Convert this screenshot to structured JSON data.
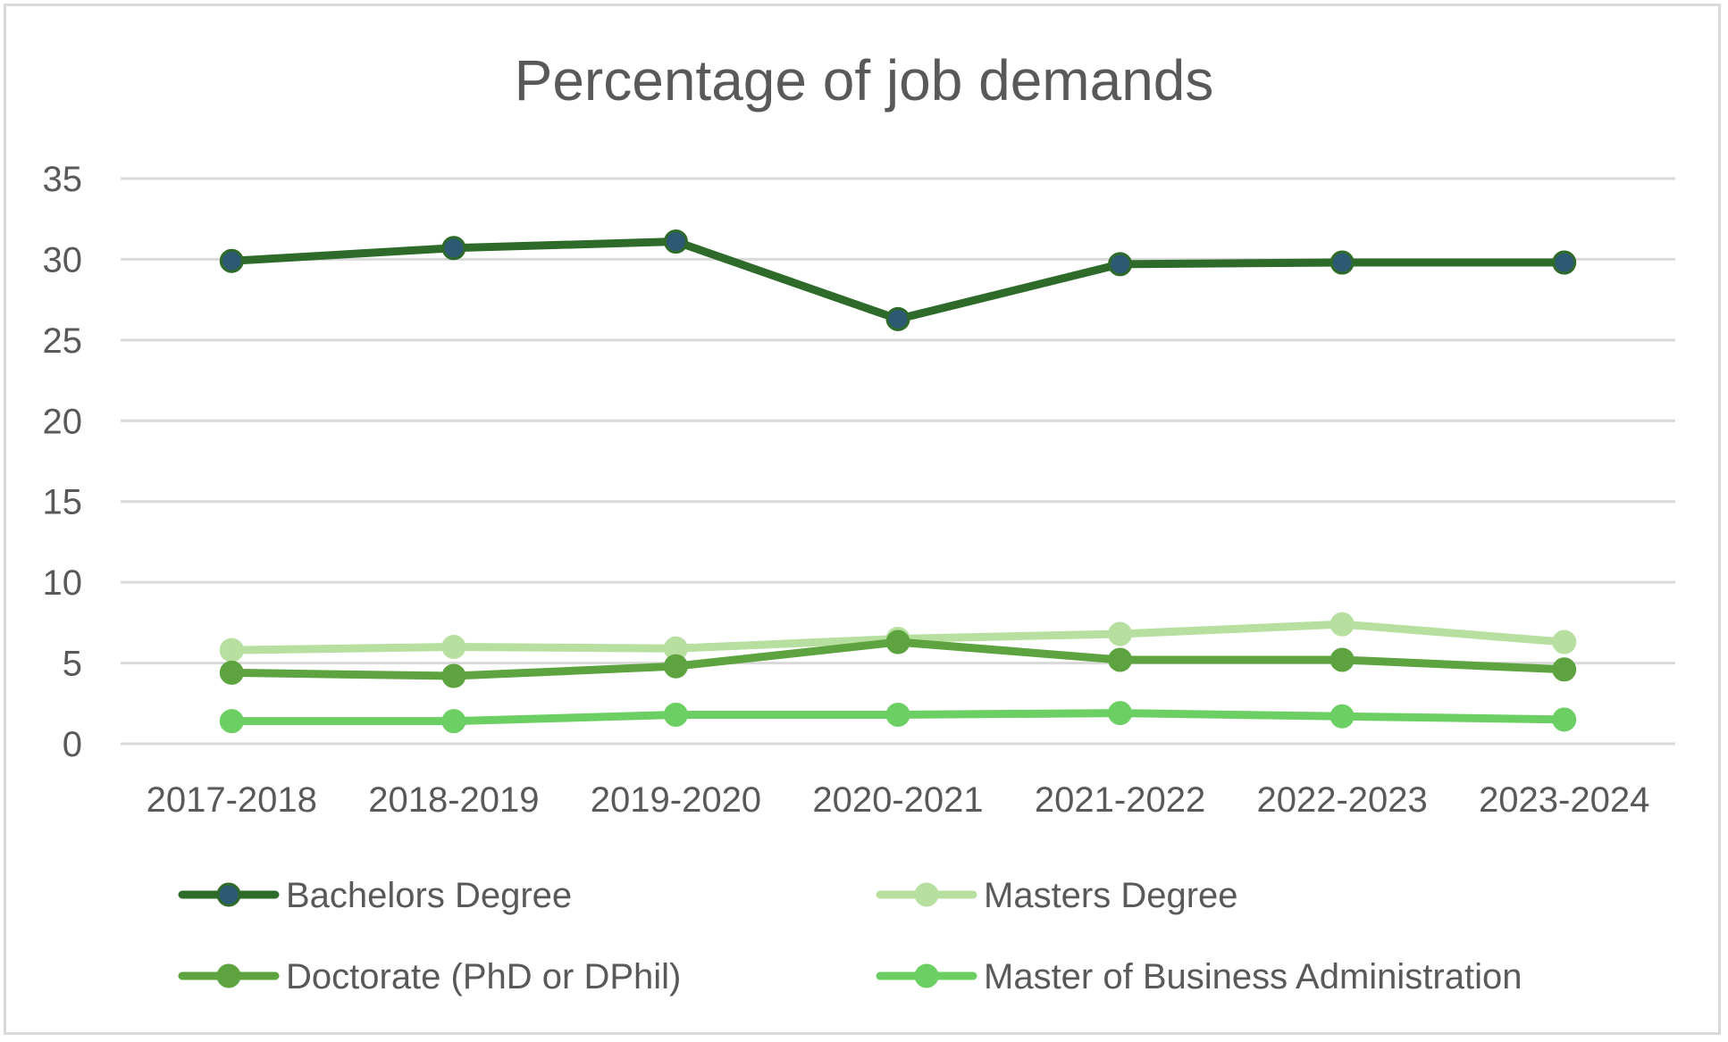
{
  "chart_data": {
    "type": "line",
    "title": "Percentage of job demands",
    "xlabel": "",
    "ylabel": "",
    "categories": [
      "2017-2018",
      "2018-2019",
      "2019-2020",
      "2020-2021",
      "2021-2022",
      "2022-2023",
      "2023-2024"
    ],
    "ylim": [
      0,
      35
    ],
    "yticks": [
      0,
      5,
      10,
      15,
      20,
      25,
      30,
      35
    ],
    "grid": true,
    "legend_position": "bottom",
    "series": [
      {
        "name": "Bachelors Degree",
        "values": [
          29.9,
          30.7,
          31.1,
          26.3,
          29.7,
          29.8,
          29.8
        ],
        "color": "#2e6b2a",
        "marker_color": "#2d5a73"
      },
      {
        "name": "Masters Degree",
        "values": [
          5.8,
          6.0,
          5.9,
          6.5,
          6.8,
          7.4,
          6.3
        ],
        "color": "#b7dfa0",
        "marker_color": "#b7dfa0"
      },
      {
        "name": "Doctorate (PhD or DPhil)",
        "values": [
          4.4,
          4.2,
          4.8,
          6.3,
          5.2,
          5.2,
          4.6
        ],
        "color": "#5da33f",
        "marker_color": "#5da33f"
      },
      {
        "name": "Master of Business Administration",
        "values": [
          1.4,
          1.4,
          1.8,
          1.8,
          1.9,
          1.7,
          1.5
        ],
        "color": "#6ccf63",
        "marker_color": "#6ccf63"
      }
    ]
  }
}
